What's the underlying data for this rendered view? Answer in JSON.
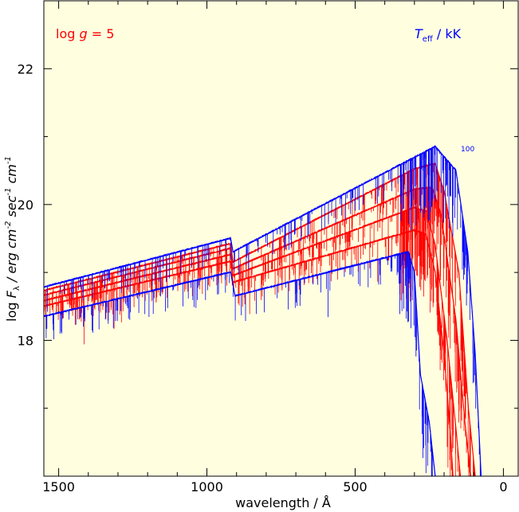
{
  "chart_data": {
    "type": "line",
    "title": "",
    "xlabel": "wavelength / Å",
    "ylabel_parts": {
      "prefix": "log ",
      "F": "F",
      "lambda": "λ",
      "mid": "  / erg cm",
      "exp1": "-2",
      "sec": " sec",
      "exp2": "-1",
      "cm": " cm",
      "exp3": "-1"
    },
    "xlim": [
      1550,
      -50
    ],
    "ylim": [
      16.0,
      23.0
    ],
    "x_ticks": [
      1500,
      1000,
      500,
      0
    ],
    "x_tick_labels": [
      "1500",
      "1000",
      "500",
      "0"
    ],
    "y_ticks": [
      18,
      20,
      22
    ],
    "y_tick_labels": [
      "18",
      "20",
      "22"
    ],
    "annotation_left": {
      "text": "log ",
      "g": "g",
      "rest": " = 5",
      "color": "#ff0000"
    },
    "annotation_right": {
      "T": "T",
      "sub": "eff",
      "rest": "  / kK",
      "color": "#0000ff"
    },
    "label_top_curve": "100",
    "background": "#ffffe0",
    "grid": false,
    "series": [
      {
        "color": "#ff0000",
        "continuum": [
          [
            1550,
            18.73
          ],
          [
            920,
            19.42
          ],
          [
            912,
            19.15
          ],
          [
            300,
            20.52
          ],
          [
            230,
            20.6
          ],
          [
            200,
            20.2
          ],
          [
            150,
            19.0
          ],
          [
            118,
            17.0
          ],
          [
            95,
            16.0
          ]
        ]
      },
      {
        "color": "#ff0000",
        "continuum": [
          [
            1550,
            18.66
          ],
          [
            920,
            19.35
          ],
          [
            912,
            19.05
          ],
          [
            300,
            20.22
          ],
          [
            240,
            20.25
          ],
          [
            210,
            19.85
          ],
          [
            160,
            18.3
          ],
          [
            130,
            16.8
          ],
          [
            110,
            16.0
          ]
        ]
      },
      {
        "color": "#ff0000",
        "continuum": [
          [
            1550,
            18.58
          ],
          [
            920,
            19.26
          ],
          [
            912,
            18.95
          ],
          [
            300,
            19.95
          ],
          [
            260,
            19.9
          ],
          [
            230,
            19.4
          ],
          [
            190,
            18.0
          ],
          [
            160,
            16.7
          ],
          [
            145,
            16.0
          ]
        ]
      },
      {
        "color": "#ff0000",
        "continuum": [
          [
            1550,
            18.5
          ],
          [
            920,
            19.16
          ],
          [
            912,
            18.85
          ],
          [
            300,
            19.62
          ],
          [
            260,
            19.55
          ],
          [
            230,
            19.0
          ],
          [
            200,
            17.8
          ],
          [
            180,
            16.7
          ],
          [
            170,
            16.0
          ]
        ]
      },
      {
        "color": "#0000ff",
        "continuum": [
          [
            1550,
            18.78
          ],
          [
            920,
            19.5
          ],
          [
            912,
            19.3
          ],
          [
            230,
            20.85
          ],
          [
            200,
            20.7
          ],
          [
            160,
            20.5
          ],
          [
            120,
            19.3
          ],
          [
            95,
            17.8
          ],
          [
            75,
            16.0
          ]
        ]
      },
      {
        "color": "#0000ff",
        "continuum": [
          [
            1550,
            18.35
          ],
          [
            920,
            19.0
          ],
          [
            905,
            18.65
          ],
          [
            320,
            19.3
          ],
          [
            300,
            19.0
          ],
          [
            280,
            17.5
          ],
          [
            250,
            16.8
          ],
          [
            230,
            16.0
          ]
        ]
      }
    ]
  }
}
